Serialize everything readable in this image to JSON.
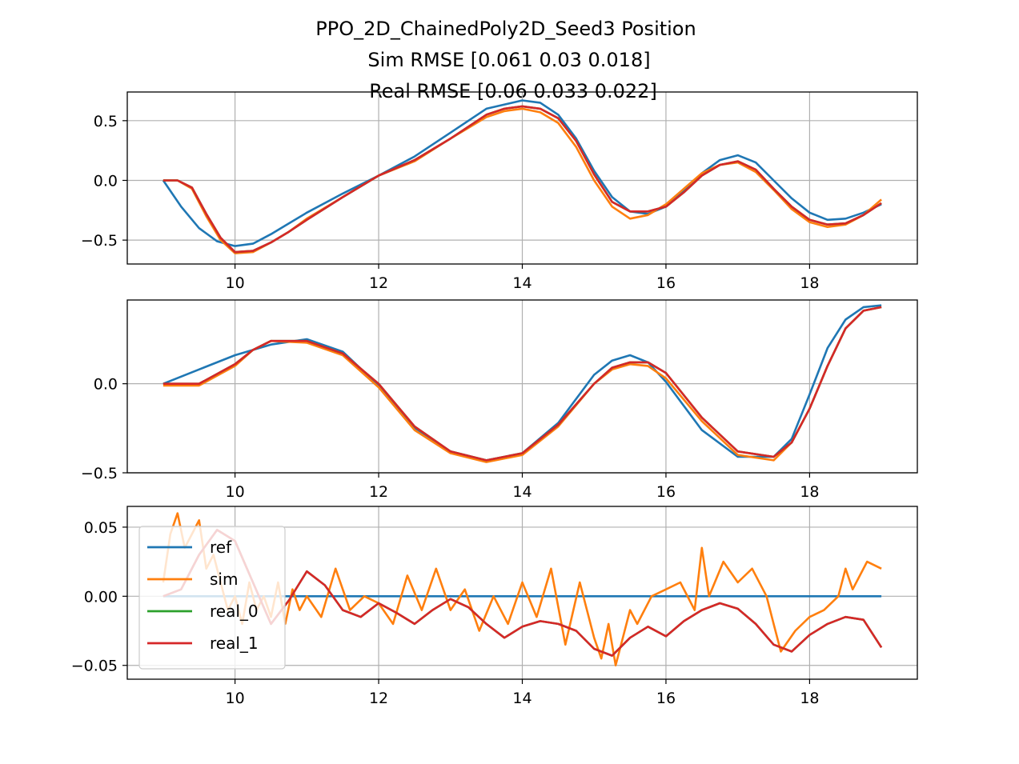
{
  "figure": {
    "title_lines": [
      "PPO_2D_ChainedPoly2D_Seed3   Position",
      "Sim RMSE [0.061 0.03  0.018]",
      "Real RMSE [0.06  0.033 0.022]"
    ]
  },
  "colors": {
    "ref": "#1f77b4",
    "sim": "#ff7f0e",
    "real_0": "#2ca02c",
    "real_1": "#d62728"
  },
  "chart_data": [
    {
      "type": "line",
      "xlim": [
        8.5,
        19.5
      ],
      "ylim": [
        -0.7,
        0.74
      ],
      "x_ticks": [
        10,
        12,
        14,
        16,
        18
      ],
      "x_tick_labels": [
        "10",
        "12",
        "14",
        "16",
        "18"
      ],
      "y_ticks": [
        0.5,
        0.0,
        -0.5
      ],
      "y_tick_labels": [
        "0.5",
        "0.0",
        "−0.5"
      ],
      "grid": true,
      "series": [
        {
          "key": "ref",
          "x": [
            9.0,
            9.25,
            9.5,
            9.75,
            10.0,
            10.25,
            10.5,
            10.75,
            11.0,
            11.5,
            12.0,
            12.5,
            13.0,
            13.5,
            14.0,
            14.25,
            14.5,
            14.75,
            15.0,
            15.25,
            15.5,
            15.75,
            16.0,
            16.25,
            16.5,
            16.75,
            17.0,
            17.25,
            17.5,
            17.75,
            18.0,
            18.25,
            18.5,
            18.75,
            19.0
          ],
          "y": [
            0.0,
            -0.22,
            -0.4,
            -0.51,
            -0.55,
            -0.53,
            -0.45,
            -0.36,
            -0.27,
            -0.11,
            0.04,
            0.2,
            0.4,
            0.6,
            0.67,
            0.65,
            0.55,
            0.35,
            0.08,
            -0.14,
            -0.26,
            -0.28,
            -0.22,
            -0.09,
            0.06,
            0.17,
            0.21,
            0.15,
            0.0,
            -0.15,
            -0.27,
            -0.33,
            -0.32,
            -0.27,
            -0.2
          ]
        },
        {
          "key": "sim",
          "x": [
            9.0,
            9.2,
            9.4,
            9.6,
            9.8,
            10.0,
            10.25,
            10.5,
            10.75,
            11.0,
            11.5,
            12.0,
            12.5,
            13.0,
            13.5,
            13.75,
            14.0,
            14.25,
            14.5,
            14.75,
            15.0,
            15.25,
            15.5,
            15.75,
            16.0,
            16.25,
            16.5,
            16.75,
            17.0,
            17.25,
            17.5,
            17.75,
            18.0,
            18.25,
            18.5,
            18.75,
            19.0
          ],
          "y": [
            0.0,
            0.0,
            -0.07,
            -0.3,
            -0.5,
            -0.61,
            -0.6,
            -0.52,
            -0.43,
            -0.32,
            -0.14,
            0.04,
            0.16,
            0.35,
            0.53,
            0.58,
            0.6,
            0.57,
            0.48,
            0.28,
            0.0,
            -0.22,
            -0.32,
            -0.29,
            -0.2,
            -0.07,
            0.06,
            0.13,
            0.15,
            0.07,
            -0.08,
            -0.24,
            -0.35,
            -0.39,
            -0.37,
            -0.29,
            -0.16
          ]
        },
        {
          "key": "real_0",
          "x": [
            9.0,
            9.2,
            9.4,
            9.6,
            9.8,
            10.0,
            10.25,
            10.5,
            10.75,
            11.0,
            11.5,
            12.0,
            12.5,
            13.0,
            13.5,
            13.75,
            14.0,
            14.25,
            14.5,
            14.75,
            15.0,
            15.25,
            15.5,
            15.75,
            16.0,
            16.25,
            16.5,
            16.75,
            17.0,
            17.25,
            17.5,
            17.75,
            18.0,
            18.25,
            18.5,
            18.75,
            19.0
          ],
          "y": [
            0.0,
            0.0,
            -0.06,
            -0.28,
            -0.48,
            -0.6,
            -0.59,
            -0.52,
            -0.43,
            -0.33,
            -0.14,
            0.04,
            0.17,
            0.35,
            0.55,
            0.6,
            0.62,
            0.6,
            0.52,
            0.33,
            0.05,
            -0.18,
            -0.26,
            -0.26,
            -0.22,
            -0.1,
            0.04,
            0.13,
            0.16,
            0.09,
            -0.07,
            -0.22,
            -0.33,
            -0.37,
            -0.36,
            -0.29,
            -0.19
          ]
        },
        {
          "key": "real_1",
          "x": [
            9.0,
            9.2,
            9.4,
            9.6,
            9.8,
            10.0,
            10.25,
            10.5,
            10.75,
            11.0,
            11.5,
            12.0,
            12.5,
            13.0,
            13.5,
            13.75,
            14.0,
            14.25,
            14.5,
            14.75,
            15.0,
            15.25,
            15.5,
            15.75,
            16.0,
            16.25,
            16.5,
            16.75,
            17.0,
            17.25,
            17.5,
            17.75,
            18.0,
            18.25,
            18.5,
            18.75,
            19.0
          ],
          "y": [
            0.0,
            0.0,
            -0.06,
            -0.28,
            -0.48,
            -0.6,
            -0.59,
            -0.52,
            -0.43,
            -0.33,
            -0.14,
            0.04,
            0.17,
            0.35,
            0.55,
            0.6,
            0.62,
            0.6,
            0.52,
            0.33,
            0.05,
            -0.18,
            -0.26,
            -0.26,
            -0.22,
            -0.1,
            0.04,
            0.13,
            0.16,
            0.09,
            -0.07,
            -0.22,
            -0.33,
            -0.37,
            -0.36,
            -0.29,
            -0.19
          ]
        }
      ]
    },
    {
      "type": "line",
      "xlim": [
        8.5,
        19.5
      ],
      "ylim": [
        -0.5,
        0.47
      ],
      "x_ticks": [
        10,
        12,
        14,
        16,
        18
      ],
      "x_tick_labels": [
        "10",
        "12",
        "14",
        "16",
        "18"
      ],
      "y_ticks": [
        0.0,
        -0.5
      ],
      "y_tick_labels": [
        "0.0",
        "−0.5"
      ],
      "grid": true,
      "series": [
        {
          "key": "ref",
          "x": [
            9.0,
            9.5,
            10.0,
            10.5,
            11.0,
            11.5,
            12.0,
            12.5,
            13.0,
            13.5,
            14.0,
            14.5,
            15.0,
            15.25,
            15.5,
            15.75,
            16.0,
            16.5,
            17.0,
            17.5,
            17.75,
            18.0,
            18.25,
            18.5,
            18.75,
            19.0
          ],
          "y": [
            0.0,
            0.08,
            0.16,
            0.22,
            0.25,
            0.18,
            -0.01,
            -0.25,
            -0.38,
            -0.43,
            -0.39,
            -0.22,
            0.05,
            0.13,
            0.16,
            0.12,
            0.01,
            -0.26,
            -0.41,
            -0.41,
            -0.31,
            -0.06,
            0.2,
            0.36,
            0.43,
            0.44
          ]
        },
        {
          "key": "sim",
          "x": [
            9.0,
            9.5,
            10.0,
            10.25,
            10.5,
            11.0,
            11.5,
            12.0,
            12.5,
            13.0,
            13.5,
            14.0,
            14.5,
            15.0,
            15.25,
            15.5,
            15.75,
            16.0,
            16.5,
            17.0,
            17.5,
            17.75,
            18.0,
            18.25,
            18.5,
            18.75,
            19.0
          ],
          "y": [
            -0.01,
            -0.01,
            0.1,
            0.19,
            0.24,
            0.23,
            0.16,
            -0.02,
            -0.26,
            -0.39,
            -0.44,
            -0.4,
            -0.24,
            0.0,
            0.08,
            0.11,
            0.1,
            0.03,
            -0.21,
            -0.4,
            -0.43,
            -0.33,
            -0.14,
            0.1,
            0.31,
            0.41,
            0.43
          ]
        },
        {
          "key": "real_0",
          "x": [
            9.0,
            9.5,
            10.0,
            10.25,
            10.5,
            11.0,
            11.5,
            12.0,
            12.5,
            13.0,
            13.5,
            14.0,
            14.5,
            15.0,
            15.25,
            15.5,
            15.75,
            16.0,
            16.5,
            17.0,
            17.5,
            17.75,
            18.0,
            18.25,
            18.5,
            18.75,
            19.0
          ],
          "y": [
            0.0,
            0.0,
            0.11,
            0.19,
            0.24,
            0.24,
            0.17,
            0.0,
            -0.24,
            -0.38,
            -0.43,
            -0.39,
            -0.23,
            0.0,
            0.09,
            0.12,
            0.12,
            0.06,
            -0.19,
            -0.38,
            -0.41,
            -0.33,
            -0.14,
            0.1,
            0.31,
            0.41,
            0.43
          ]
        },
        {
          "key": "real_1",
          "x": [
            9.0,
            9.5,
            10.0,
            10.25,
            10.5,
            11.0,
            11.5,
            12.0,
            12.5,
            13.0,
            13.5,
            14.0,
            14.5,
            15.0,
            15.25,
            15.5,
            15.75,
            16.0,
            16.5,
            17.0,
            17.5,
            17.75,
            18.0,
            18.25,
            18.5,
            18.75,
            19.0
          ],
          "y": [
            0.0,
            0.0,
            0.11,
            0.19,
            0.24,
            0.24,
            0.17,
            0.0,
            -0.24,
            -0.38,
            -0.43,
            -0.39,
            -0.23,
            0.0,
            0.09,
            0.12,
            0.12,
            0.06,
            -0.19,
            -0.38,
            -0.41,
            -0.33,
            -0.14,
            0.1,
            0.31,
            0.41,
            0.43
          ]
        }
      ]
    },
    {
      "type": "line",
      "xlim": [
        8.5,
        19.5
      ],
      "ylim": [
        -0.06,
        0.065
      ],
      "x_ticks": [
        10,
        12,
        14,
        16,
        18
      ],
      "x_tick_labels": [
        "10",
        "12",
        "14",
        "16",
        "18"
      ],
      "y_ticks": [
        0.05,
        0.0,
        -0.05
      ],
      "y_tick_labels": [
        "0.05",
        "0.00",
        "−0.05"
      ],
      "grid": true,
      "legend": {
        "placement": "upper-left",
        "labels": [
          "ref",
          "sim",
          "real_0",
          "real_1"
        ]
      },
      "series": [
        {
          "key": "ref",
          "x": [
            9.0,
            19.0
          ],
          "y": [
            0.0,
            0.0
          ]
        },
        {
          "key": "sim",
          "x": [
            9.0,
            9.1,
            9.2,
            9.3,
            9.4,
            9.5,
            9.6,
            9.7,
            9.8,
            9.9,
            10.0,
            10.1,
            10.2,
            10.3,
            10.4,
            10.5,
            10.6,
            10.7,
            10.8,
            10.9,
            11.0,
            11.2,
            11.4,
            11.6,
            11.8,
            12.0,
            12.2,
            12.4,
            12.6,
            12.8,
            13.0,
            13.2,
            13.4,
            13.6,
            13.8,
            14.0,
            14.2,
            14.4,
            14.6,
            14.8,
            15.0,
            15.1,
            15.2,
            15.3,
            15.4,
            15.5,
            15.6,
            15.8,
            16.0,
            16.2,
            16.4,
            16.5,
            16.6,
            16.8,
            17.0,
            17.2,
            17.4,
            17.5,
            17.6,
            17.8,
            18.0,
            18.2,
            18.4,
            18.5,
            18.6,
            18.8,
            19.0
          ],
          "y": [
            0.01,
            0.045,
            0.06,
            0.035,
            0.045,
            0.055,
            0.02,
            0.03,
            0.01,
            -0.01,
            0.0,
            -0.02,
            0.01,
            -0.01,
            0.0,
            -0.015,
            0.01,
            -0.02,
            0.005,
            -0.01,
            0.0,
            -0.015,
            0.02,
            -0.01,
            0.0,
            -0.005,
            -0.02,
            0.015,
            -0.01,
            0.02,
            -0.01,
            0.005,
            -0.025,
            0.0,
            -0.02,
            0.01,
            -0.015,
            0.02,
            -0.035,
            0.01,
            -0.03,
            -0.045,
            -0.02,
            -0.05,
            -0.03,
            -0.01,
            -0.02,
            0.0,
            0.005,
            0.01,
            -0.01,
            0.035,
            0.0,
            0.025,
            0.01,
            0.02,
            0.0,
            -0.02,
            -0.04,
            -0.025,
            -0.015,
            -0.01,
            0.0,
            0.02,
            0.005,
            0.025,
            0.02
          ]
        },
        {
          "key": "real_0",
          "x": [
            9.0,
            9.25,
            9.5,
            9.75,
            10.0,
            10.25,
            10.5,
            10.75,
            11.0,
            11.25,
            11.5,
            11.75,
            12.0,
            12.25,
            12.5,
            12.75,
            13.0,
            13.25,
            13.5,
            13.75,
            14.0,
            14.25,
            14.5,
            14.75,
            15.0,
            15.25,
            15.5,
            15.75,
            16.0,
            16.25,
            16.5,
            16.75,
            17.0,
            17.25,
            17.5,
            17.75,
            18.0,
            18.25,
            18.5,
            18.75,
            19.0
          ],
          "y": [
            0.0,
            0.005,
            0.03,
            0.048,
            0.04,
            0.01,
            -0.02,
            -0.003,
            0.018,
            0.008,
            -0.01,
            -0.015,
            -0.005,
            -0.012,
            -0.02,
            -0.01,
            -0.002,
            -0.008,
            -0.02,
            -0.03,
            -0.022,
            -0.018,
            -0.02,
            -0.025,
            -0.038,
            -0.043,
            -0.03,
            -0.022,
            -0.029,
            -0.018,
            -0.01,
            -0.005,
            -0.009,
            -0.02,
            -0.035,
            -0.04,
            -0.028,
            -0.02,
            -0.015,
            -0.017,
            -0.037
          ]
        },
        {
          "key": "real_1",
          "x": [
            9.0,
            9.25,
            9.5,
            9.75,
            10.0,
            10.25,
            10.5,
            10.75,
            11.0,
            11.25,
            11.5,
            11.75,
            12.0,
            12.25,
            12.5,
            12.75,
            13.0,
            13.25,
            13.5,
            13.75,
            14.0,
            14.25,
            14.5,
            14.75,
            15.0,
            15.25,
            15.5,
            15.75,
            16.0,
            16.25,
            16.5,
            16.75,
            17.0,
            17.25,
            17.5,
            17.75,
            18.0,
            18.25,
            18.5,
            18.75,
            19.0
          ],
          "y": [
            0.0,
            0.005,
            0.03,
            0.048,
            0.04,
            0.01,
            -0.02,
            -0.003,
            0.018,
            0.008,
            -0.01,
            -0.015,
            -0.005,
            -0.012,
            -0.02,
            -0.01,
            -0.002,
            -0.008,
            -0.02,
            -0.03,
            -0.022,
            -0.018,
            -0.02,
            -0.025,
            -0.038,
            -0.043,
            -0.03,
            -0.022,
            -0.029,
            -0.018,
            -0.01,
            -0.005,
            -0.009,
            -0.02,
            -0.035,
            -0.04,
            -0.028,
            -0.02,
            -0.015,
            -0.017,
            -0.037
          ]
        }
      ]
    }
  ]
}
